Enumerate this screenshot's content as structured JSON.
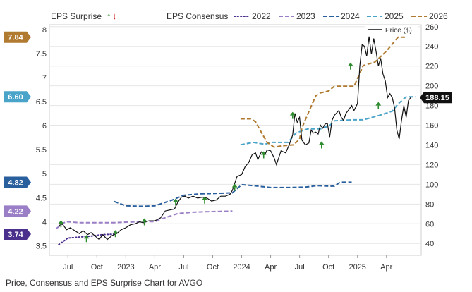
{
  "caption": "Price, Consensus and EPS Surprise Chart for AVGO",
  "legend": {
    "surprise_label": "EPS Surprise",
    "consensus_label": "EPS Consensus",
    "up_arrow": "↑",
    "down_arrow": "↓",
    "price_label": "Price ($)"
  },
  "colors": {
    "c2022": "#4a2f8c",
    "c2023": "#9b7fc6",
    "c2024": "#2a5f9e",
    "c2025": "#4aa3c8",
    "c2026": "#b07a30",
    "price": "#111111",
    "arrow_up": "#2e8b2e",
    "arrow_down": "#cc2222",
    "grid": "#e6e6e6"
  },
  "chart_data": {
    "type": "line",
    "x_ticks": [
      "Jul",
      "Oct",
      "2023",
      "Apr",
      "Jul",
      "Oct",
      "2024",
      "Apr",
      "Jul",
      "Oct",
      "2025",
      "Apr"
    ],
    "y_left": {
      "ticks": [
        "3.5",
        "4",
        "4.5",
        "5",
        "5.5",
        "6",
        "6.5",
        "7",
        "7.5",
        "8"
      ],
      "range": [
        3.3,
        8.1
      ]
    },
    "y_right": {
      "label": "Price ($)",
      "ticks": [
        "40",
        "60",
        "80",
        "100",
        "120",
        "140",
        "160",
        "180",
        "200",
        "220",
        "240",
        "260"
      ],
      "range": [
        28,
        262
      ]
    },
    "consensus_badges": [
      {
        "value": "7.84",
        "series": "2026"
      },
      {
        "value": "6.60",
        "series": "2025"
      },
      {
        "value": "4.82",
        "series": "2024"
      },
      {
        "value": "4.22",
        "series": "2023"
      },
      {
        "value": "3.74",
        "series": "2022"
      }
    ],
    "price_badge": "188.15",
    "series": [
      {
        "name": "2022",
        "style": "dotted",
        "points": [
          [
            2022.42,
            3.52
          ],
          [
            2022.5,
            3.66
          ],
          [
            2022.6,
            3.68
          ],
          [
            2022.7,
            3.7
          ],
          [
            2022.8,
            3.73
          ],
          [
            2022.9,
            3.74
          ]
        ]
      },
      {
        "name": "2023",
        "style": "dashed",
        "points": [
          [
            2022.4,
            3.86
          ],
          [
            2022.48,
            4.0
          ],
          [
            2022.6,
            3.98
          ],
          [
            2022.75,
            3.98
          ],
          [
            2022.9,
            3.98
          ],
          [
            2023.0,
            3.99
          ],
          [
            2023.15,
            4.0
          ],
          [
            2023.25,
            4.0
          ],
          [
            2023.3,
            4.05
          ],
          [
            2023.45,
            4.17
          ],
          [
            2023.6,
            4.2
          ],
          [
            2023.75,
            4.21
          ],
          [
            2023.92,
            4.22
          ]
        ]
      },
      {
        "name": "2024",
        "style": "dashed",
        "points": [
          [
            2022.9,
            4.42
          ],
          [
            2023.0,
            4.33
          ],
          [
            2023.15,
            4.32
          ],
          [
            2023.25,
            4.33
          ],
          [
            2023.4,
            4.45
          ],
          [
            2023.5,
            4.55
          ],
          [
            2023.65,
            4.58
          ],
          [
            2023.8,
            4.59
          ],
          [
            2023.92,
            4.6
          ],
          [
            2024.0,
            4.77
          ],
          [
            2024.1,
            4.75
          ],
          [
            2024.25,
            4.71
          ],
          [
            2024.4,
            4.71
          ],
          [
            2024.55,
            4.72
          ],
          [
            2024.65,
            4.75
          ],
          [
            2024.75,
            4.74
          ],
          [
            2024.8,
            4.74
          ],
          [
            2024.85,
            4.82
          ],
          [
            2024.95,
            4.82
          ]
        ]
      },
      {
        "name": "2025",
        "style": "dashed",
        "points": [
          [
            2023.99,
            5.6
          ],
          [
            2024.1,
            5.65
          ],
          [
            2024.2,
            5.61
          ],
          [
            2024.25,
            5.65
          ],
          [
            2024.4,
            5.65
          ],
          [
            2024.47,
            5.85
          ],
          [
            2024.57,
            5.93
          ],
          [
            2024.68,
            5.93
          ],
          [
            2024.76,
            6.0
          ],
          [
            2024.8,
            6.1
          ],
          [
            2024.95,
            6.12
          ],
          [
            2025.05,
            6.12
          ],
          [
            2025.2,
            6.22
          ],
          [
            2025.3,
            6.3
          ],
          [
            2025.35,
            6.45
          ],
          [
            2025.42,
            6.6
          ],
          [
            2025.5,
            6.6
          ]
        ]
      },
      {
        "name": "2026",
        "style": "dashed",
        "points": [
          [
            2023.99,
            6.14
          ],
          [
            2024.08,
            6.14
          ],
          [
            2024.12,
            6.08
          ],
          [
            2024.17,
            5.86
          ],
          [
            2024.22,
            5.65
          ],
          [
            2024.28,
            5.55
          ],
          [
            2024.35,
            5.58
          ],
          [
            2024.45,
            5.6
          ],
          [
            2024.5,
            5.72
          ],
          [
            2024.52,
            5.95
          ],
          [
            2024.55,
            6.12
          ],
          [
            2024.6,
            6.4
          ],
          [
            2024.64,
            6.62
          ],
          [
            2024.68,
            6.68
          ],
          [
            2024.75,
            6.72
          ],
          [
            2024.8,
            6.82
          ],
          [
            2024.9,
            6.82
          ],
          [
            2024.97,
            6.82
          ],
          [
            2025.0,
            6.98
          ],
          [
            2025.05,
            7.25
          ],
          [
            2025.15,
            7.32
          ],
          [
            2025.25,
            7.55
          ],
          [
            2025.35,
            7.84
          ],
          [
            2025.42,
            7.84
          ]
        ]
      }
    ],
    "price_points": [
      [
        2022.42,
        58
      ],
      [
        2022.45,
        60
      ],
      [
        2022.49,
        54
      ],
      [
        2022.52,
        56
      ],
      [
        2022.56,
        53
      ],
      [
        2022.6,
        50
      ],
      [
        2022.63,
        53
      ],
      [
        2022.67,
        49
      ],
      [
        2022.7,
        51
      ],
      [
        2022.74,
        47
      ],
      [
        2022.77,
        44
      ],
      [
        2022.8,
        49
      ],
      [
        2022.84,
        44
      ],
      [
        2022.88,
        48
      ],
      [
        2022.92,
        50
      ],
      [
        2022.96,
        54
      ],
      [
        2023.0,
        56
      ],
      [
        2023.04,
        59
      ],
      [
        2023.08,
        60
      ],
      [
        2023.12,
        62
      ],
      [
        2023.15,
        61
      ],
      [
        2023.2,
        63
      ],
      [
        2023.25,
        63
      ],
      [
        2023.3,
        66
      ],
      [
        2023.34,
        73
      ],
      [
        2023.38,
        74
      ],
      [
        2023.42,
        75
      ],
      [
        2023.45,
        82
      ],
      [
        2023.48,
        87
      ],
      [
        2023.51,
        88
      ],
      [
        2023.54,
        86
      ],
      [
        2023.58,
        88
      ],
      [
        2023.62,
        86
      ],
      [
        2023.66,
        87
      ],
      [
        2023.7,
        86
      ],
      [
        2023.74,
        83
      ],
      [
        2023.78,
        84
      ],
      [
        2023.82,
        88
      ],
      [
        2023.86,
        88
      ],
      [
        2023.9,
        90
      ],
      [
        2023.92,
        94
      ],
      [
        2023.96,
        108
      ],
      [
        2024.0,
        110
      ],
      [
        2024.03,
        118
      ],
      [
        2024.06,
        122
      ],
      [
        2024.09,
        130
      ],
      [
        2024.12,
        132
      ],
      [
        2024.14,
        125
      ],
      [
        2024.17,
        133
      ],
      [
        2024.2,
        130
      ],
      [
        2024.22,
        135
      ],
      [
        2024.25,
        134
      ],
      [
        2024.28,
        127
      ],
      [
        2024.3,
        120
      ],
      [
        2024.34,
        134
      ],
      [
        2024.38,
        132
      ],
      [
        2024.41,
        140
      ],
      [
        2024.44,
        150
      ],
      [
        2024.46,
        172
      ],
      [
        2024.48,
        163
      ],
      [
        2024.5,
        168
      ],
      [
        2024.52,
        145
      ],
      [
        2024.55,
        140
      ],
      [
        2024.58,
        142
      ],
      [
        2024.6,
        155
      ],
      [
        2024.62,
        152
      ],
      [
        2024.64,
        153
      ],
      [
        2024.66,
        151
      ],
      [
        2024.68,
        160
      ],
      [
        2024.7,
        157
      ],
      [
        2024.72,
        161
      ],
      [
        2024.74,
        162
      ],
      [
        2024.76,
        148
      ],
      [
        2024.78,
        165
      ],
      [
        2024.8,
        170
      ],
      [
        2024.84,
        175
      ],
      [
        2024.86,
        168
      ],
      [
        2024.88,
        165
      ],
      [
        2024.9,
        172
      ],
      [
        2024.92,
        175
      ],
      [
        2024.95,
        180
      ],
      [
        2024.97,
        175
      ],
      [
        2025.0,
        182
      ],
      [
        2025.02,
        220
      ],
      [
        2025.04,
        242
      ],
      [
        2025.06,
        240
      ],
      [
        2025.08,
        230
      ],
      [
        2025.1,
        250
      ],
      [
        2025.12,
        232
      ],
      [
        2025.14,
        248
      ],
      [
        2025.16,
        235
      ],
      [
        2025.18,
        220
      ],
      [
        2025.2,
        228
      ],
      [
        2025.22,
        212
      ],
      [
        2025.24,
        205
      ],
      [
        2025.26,
        188
      ],
      [
        2025.28,
        192
      ],
      [
        2025.3,
        188
      ],
      [
        2025.32,
        178
      ],
      [
        2025.34,
        155
      ],
      [
        2025.36,
        146
      ],
      [
        2025.38,
        165
      ],
      [
        2025.4,
        180
      ],
      [
        2025.42,
        168
      ],
      [
        2025.44,
        185
      ],
      [
        2025.46,
        188.15
      ]
    ],
    "surprise_events": [
      {
        "x": 2022.44,
        "price": 60,
        "dir": "up"
      },
      {
        "x": 2022.66,
        "price": 45,
        "dir": "up"
      },
      {
        "x": 2022.91,
        "price": 50,
        "dir": "up"
      },
      {
        "x": 2023.16,
        "price": 62,
        "dir": "up"
      },
      {
        "x": 2023.43,
        "price": 82,
        "dir": "up"
      },
      {
        "x": 2023.68,
        "price": 84,
        "dir": "up"
      },
      {
        "x": 2023.94,
        "price": 97,
        "dir": "up"
      },
      {
        "x": 2024.19,
        "price": 130,
        "dir": "up"
      },
      {
        "x": 2024.44,
        "price": 170,
        "dir": "up"
      },
      {
        "x": 2024.69,
        "price": 140,
        "dir": "up"
      },
      {
        "x": 2024.94,
        "price": 220,
        "dir": "up"
      },
      {
        "x": 2025.18,
        "price": 180,
        "dir": "up"
      }
    ]
  }
}
